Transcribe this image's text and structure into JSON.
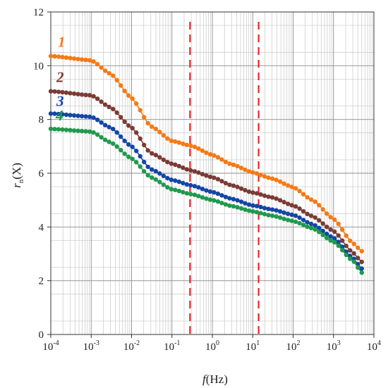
{
  "chart_data": {
    "type": "line",
    "x_scale": "log",
    "xlim": [
      0.0001,
      10000
    ],
    "ylim": [
      0,
      12
    ],
    "grid": true,
    "xlabel": {
      "var": "f",
      "unit": "(Hz)"
    },
    "ylabel": {
      "var": "r",
      "sub": "n",
      "arg": "(X)"
    },
    "x_ticks": [
      {
        "base": "10",
        "exp": "-4",
        "value": 0.0001
      },
      {
        "base": "10",
        "exp": "-3",
        "value": 0.001
      },
      {
        "base": "10",
        "exp": "-2",
        "value": 0.01
      },
      {
        "base": "10",
        "exp": "-1",
        "value": 0.1
      },
      {
        "base": "10",
        "exp": "0",
        "value": 1
      },
      {
        "base": "10",
        "exp": "1",
        "value": 10
      },
      {
        "base": "10",
        "exp": "2",
        "value": 100
      },
      {
        "base": "10",
        "exp": "3",
        "value": 1000
      },
      {
        "base": "10",
        "exp": "4",
        "value": 10000
      }
    ],
    "y_ticks": [
      0,
      2,
      4,
      6,
      8,
      10,
      12
    ],
    "vlines": [
      {
        "x": 0.28,
        "color": "#e8262a",
        "style": "dashed"
      },
      {
        "x": 14,
        "color": "#e8262a",
        "style": "dashed"
      }
    ],
    "series": [
      {
        "name": "1",
        "color": "#f57a15",
        "points": [
          [
            0.0001,
            10.36
          ],
          [
            0.001,
            10.2
          ],
          [
            0.003,
            9.7
          ],
          [
            0.01,
            8.8
          ],
          [
            0.03,
            7.75
          ],
          [
            0.1,
            7.2
          ],
          [
            0.3,
            7.02
          ],
          [
            1,
            6.68
          ],
          [
            3,
            6.33
          ],
          [
            10,
            6.03
          ],
          [
            30,
            5.8
          ],
          [
            100,
            5.48
          ],
          [
            300,
            5.0
          ],
          [
            1000,
            4.3
          ],
          [
            3000,
            3.4
          ],
          [
            5000,
            3.1
          ]
        ]
      },
      {
        "name": "2",
        "color": "#7b3b34",
        "points": [
          [
            0.0001,
            9.05
          ],
          [
            0.001,
            8.9
          ],
          [
            0.003,
            8.45
          ],
          [
            0.01,
            7.7
          ],
          [
            0.03,
            6.75
          ],
          [
            0.1,
            6.35
          ],
          [
            0.3,
            6.1
          ],
          [
            1,
            5.85
          ],
          [
            3,
            5.55
          ],
          [
            10,
            5.28
          ],
          [
            30,
            5.1
          ],
          [
            100,
            4.8
          ],
          [
            300,
            4.4
          ],
          [
            1000,
            3.85
          ],
          [
            3000,
            3.05
          ],
          [
            5000,
            2.7
          ]
        ]
      },
      {
        "name": "3",
        "color": "#1446a6",
        "points": [
          [
            0.0001,
            8.22
          ],
          [
            0.001,
            8.1
          ],
          [
            0.003,
            7.7
          ],
          [
            0.01,
            7.0
          ],
          [
            0.03,
            6.15
          ],
          [
            0.1,
            5.75
          ],
          [
            0.3,
            5.55
          ],
          [
            1,
            5.3
          ],
          [
            3,
            5.05
          ],
          [
            10,
            4.8
          ],
          [
            30,
            4.65
          ],
          [
            100,
            4.45
          ],
          [
            300,
            4.1
          ],
          [
            1000,
            3.6
          ],
          [
            3000,
            2.85
          ],
          [
            5000,
            2.45
          ]
        ]
      },
      {
        "name": "4",
        "color": "#1f9a4d",
        "points": [
          [
            0.0001,
            7.65
          ],
          [
            0.001,
            7.55
          ],
          [
            0.003,
            7.15
          ],
          [
            0.01,
            6.55
          ],
          [
            0.03,
            5.85
          ],
          [
            0.1,
            5.4
          ],
          [
            0.3,
            5.22
          ],
          [
            1,
            5.0
          ],
          [
            3,
            4.78
          ],
          [
            10,
            4.58
          ],
          [
            30,
            4.42
          ],
          [
            100,
            4.22
          ],
          [
            300,
            3.95
          ],
          [
            1000,
            3.45
          ],
          [
            3000,
            2.75
          ],
          [
            5000,
            2.3
          ]
        ]
      }
    ]
  }
}
